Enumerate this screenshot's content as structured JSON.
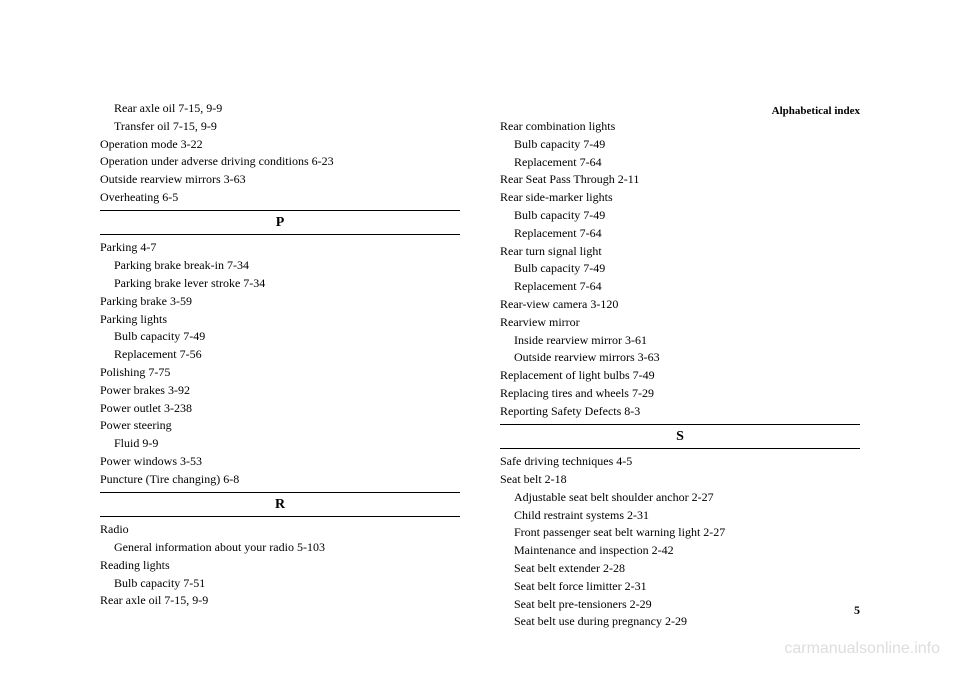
{
  "header": "Alphabetical index",
  "page_number": "5",
  "watermark": "carmanualsonline.info",
  "left_column": {
    "top_entries": [
      {
        "text": "Rear axle oil  7-15, 9-9",
        "indent": true
      },
      {
        "text": "Transfer oil  7-15, 9-9",
        "indent": true
      },
      {
        "text": "Operation mode  3-22",
        "indent": false
      },
      {
        "text": "Operation under adverse driving conditions  6-23",
        "indent": false
      },
      {
        "text": "Outside rearview mirrors  3-63",
        "indent": false
      },
      {
        "text": "Overheating  6-5",
        "indent": false
      }
    ],
    "sections": [
      {
        "letter": "P",
        "entries": [
          {
            "text": "Parking  4-7",
            "indent": false
          },
          {
            "text": "Parking brake break-in  7-34",
            "indent": true
          },
          {
            "text": "Parking brake lever stroke  7-34",
            "indent": true
          },
          {
            "text": "Parking brake  3-59",
            "indent": false
          },
          {
            "text": "Parking lights",
            "indent": false
          },
          {
            "text": "Bulb capacity  7-49",
            "indent": true
          },
          {
            "text": "Replacement  7-56",
            "indent": true
          },
          {
            "text": "Polishing  7-75",
            "indent": false
          },
          {
            "text": "Power brakes  3-92",
            "indent": false
          },
          {
            "text": "Power outlet  3-238",
            "indent": false
          },
          {
            "text": "Power steering",
            "indent": false
          },
          {
            "text": "Fluid  9-9",
            "indent": true
          },
          {
            "text": "Power windows  3-53",
            "indent": false
          },
          {
            "text": "Puncture (Tire changing)  6-8",
            "indent": false
          }
        ]
      },
      {
        "letter": "R",
        "entries": [
          {
            "text": "Radio",
            "indent": false
          },
          {
            "text": "General information about your radio  5-103",
            "indent": true
          },
          {
            "text": "Reading lights",
            "indent": false
          },
          {
            "text": "Bulb capacity  7-51",
            "indent": true
          },
          {
            "text": "Rear axle oil  7-15, 9-9",
            "indent": false
          }
        ]
      }
    ]
  },
  "right_column": {
    "top_entries": [
      {
        "text": "Rear combination lights",
        "indent": false
      },
      {
        "text": "Bulb capacity  7-49",
        "indent": true
      },
      {
        "text": "Replacement  7-64",
        "indent": true
      },
      {
        "text": "Rear Seat Pass Through  2-11",
        "indent": false
      },
      {
        "text": "Rear side-marker lights",
        "indent": false
      },
      {
        "text": "Bulb capacity  7-49",
        "indent": true
      },
      {
        "text": "Replacement  7-64",
        "indent": true
      },
      {
        "text": "Rear turn signal light",
        "indent": false
      },
      {
        "text": "Bulb capacity  7-49",
        "indent": true
      },
      {
        "text": "Replacement  7-64",
        "indent": true
      },
      {
        "text": "Rear-view camera  3-120",
        "indent": false
      },
      {
        "text": "Rearview mirror",
        "indent": false
      },
      {
        "text": "Inside rearview mirror  3-61",
        "indent": true
      },
      {
        "text": "Outside rearview mirrors  3-63",
        "indent": true
      },
      {
        "text": "Replacement of light bulbs  7-49",
        "indent": false
      },
      {
        "text": "Replacing tires and wheels  7-29",
        "indent": false
      },
      {
        "text": "Reporting Safety Defects  8-3",
        "indent": false
      }
    ],
    "sections": [
      {
        "letter": "S",
        "entries": [
          {
            "text": "Safe driving techniques  4-5",
            "indent": false
          },
          {
            "text": "Seat belt  2-18",
            "indent": false
          },
          {
            "text": "Adjustable seat belt shoulder anchor  2-27",
            "indent": true
          },
          {
            "text": "Child restraint systems  2-31",
            "indent": true
          },
          {
            "text": "Front passenger seat belt warning light  2-27",
            "indent": true
          },
          {
            "text": "Maintenance and inspection  2-42",
            "indent": true
          },
          {
            "text": "Seat belt extender  2-28",
            "indent": true
          },
          {
            "text": "Seat belt force limitter  2-31",
            "indent": true
          },
          {
            "text": "Seat belt pre-tensioners  2-29",
            "indent": true
          },
          {
            "text": "Seat belt use during pregnancy  2-29",
            "indent": true
          }
        ]
      }
    ]
  }
}
